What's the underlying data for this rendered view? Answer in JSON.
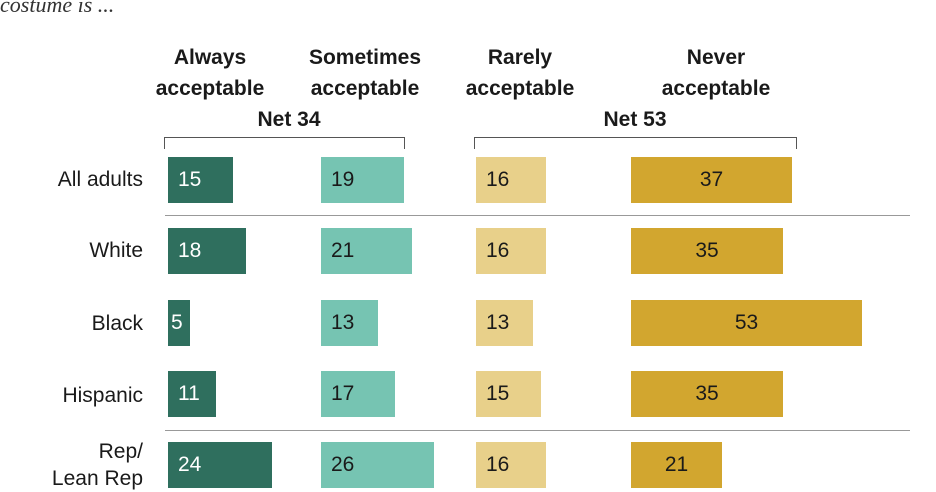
{
  "subtitle": "costume is ...",
  "colors": {
    "always": "#2f6f5e",
    "sometimes": "#76c4b2",
    "rarely": "#e8d08a",
    "never": "#d2a62f"
  },
  "chart_data": {
    "type": "bar",
    "orientation": "horizontal",
    "stacked": false,
    "series": [
      {
        "name": "Always acceptable",
        "values": [
          15,
          18,
          5,
          11,
          24
        ]
      },
      {
        "name": "Sometimes acceptable",
        "values": [
          19,
          21,
          13,
          17,
          26
        ]
      },
      {
        "name": "Rarely acceptable",
        "values": [
          16,
          16,
          13,
          15,
          16
        ]
      },
      {
        "name": "Never acceptable",
        "values": [
          37,
          35,
          53,
          35,
          21
        ]
      }
    ],
    "categories": [
      "All adults",
      "White",
      "Black",
      "Hispanic",
      "Rep/ Lean Rep"
    ],
    "column_headers": [
      [
        "Always",
        "acceptable"
      ],
      [
        "Sometimes",
        "acceptable"
      ],
      [
        "Rarely",
        "acceptable"
      ],
      [
        "Never",
        "acceptable"
      ]
    ],
    "nets": [
      {
        "label": "Net 34",
        "spans": [
          "Always acceptable",
          "Sometimes acceptable"
        ]
      },
      {
        "label": "Net 53",
        "spans": [
          "Rarely acceptable",
          "Never acceptable"
        ]
      }
    ],
    "row_labels": [
      [
        "All adults"
      ],
      [
        "White"
      ],
      [
        "Black"
      ],
      [
        "Hispanic"
      ],
      [
        "Rep/",
        "Lean Rep"
      ]
    ],
    "dividers_after_rows": [
      0,
      3
    ]
  }
}
